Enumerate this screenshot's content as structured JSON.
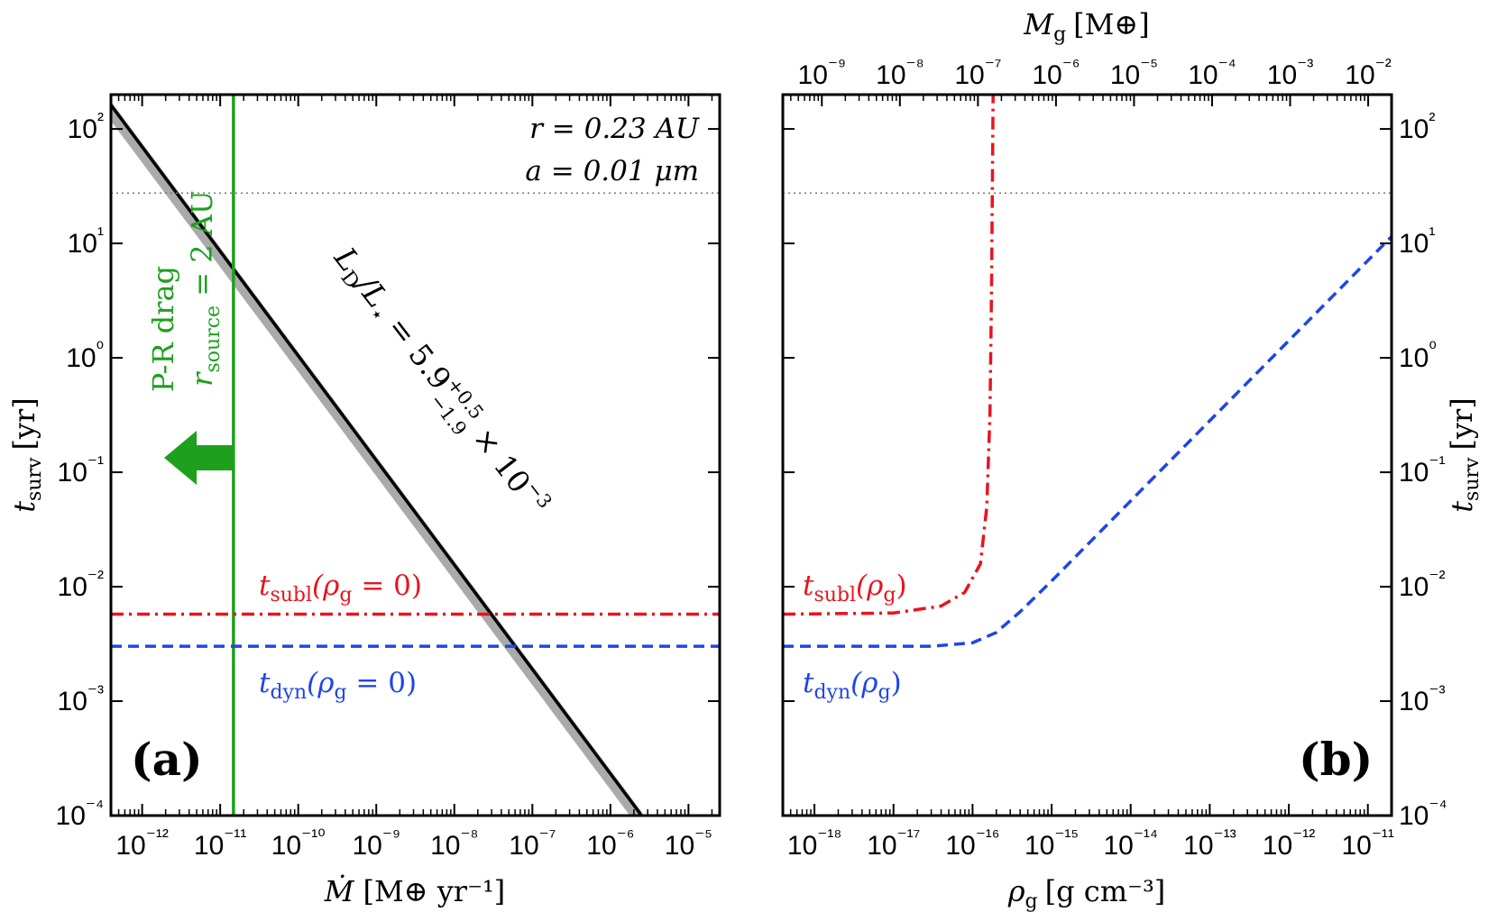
{
  "chart_data": [
    {
      "panel_label": "(a)",
      "type": "line",
      "xscale": "log",
      "yscale": "log",
      "xlim_exp": [
        -12.4,
        -4.6
      ],
      "ylim_exp": [
        -4,
        2.3
      ],
      "xticks_exp": [
        -12,
        -11,
        -10,
        -9,
        -8,
        -7,
        -6,
        -5
      ],
      "yticks_exp": [
        -4,
        -3,
        -2,
        -1,
        0,
        1,
        2
      ],
      "xlabel": {
        "main": "Ṁ",
        "unit": "[M⊕ yr⁻¹]"
      },
      "ylabel": {
        "main": "t",
        "sub": "surv",
        "unit": "[yr]"
      },
      "annotations": {
        "radius": "r = 0.23 AU",
        "grain_size": "a = 0.01 μm",
        "pr_drag": "P-R drag",
        "r_source": "r",
        "r_source_sub": "source",
        "r_source_val": " = 2 AU",
        "ld_label": "L",
        "ld_label_sub": "D",
        "ld_label_rest": "/L",
        "ld_star": "⋆",
        "ld_value": " = 5.9",
        "ld_up": "+0.5",
        "ld_down": "−1.9",
        "ld_times": " × 10",
        "ld_exp": "−3",
        "tsubl": "t",
        "tsubl_sub": "subl",
        "tsubl_arg": "(ρ",
        "tsubl_arg_sub": "g",
        "tsubl_arg_rest": " = 0)",
        "tdyn": "t",
        "tdyn_sub": "dyn",
        "tdyn_arg": "(ρ",
        "tdyn_arg_sub": "g",
        "tdyn_arg_rest": " = 0)"
      },
      "series": [
        {
          "name": "L_D/L_star = 5.9e-3 band (range 4.0e-3 to 6.4e-3)",
          "style": "gray band",
          "color": "#aaaaaa",
          "x_exp": [
            -12.5,
            -5.6
          ],
          "y_exp": [
            2.3,
            -4.0
          ]
        },
        {
          "name": "L_D/L_star = 5.9e-3",
          "style": "solid",
          "color": "#000000",
          "x_exp": [
            -12.5,
            -5.6
          ],
          "y_exp": [
            2.3,
            -4.0
          ]
        },
        {
          "name": "P-R drag r_source = 2 AU",
          "style": "solid vertical",
          "color": "#1ea01e",
          "x_exp": -10.83
        },
        {
          "name": "t_subl(rho_g = 0)",
          "style": "dash-dot",
          "color": "#e8141e",
          "y_exp": -2.24
        },
        {
          "name": "t_dyn(rho_g = 0)",
          "style": "dashed",
          "color": "#1e46e6",
          "y_exp": -2.52
        },
        {
          "name": "reference",
          "style": "dotted",
          "color": "#777777",
          "y_exp": 1.44
        }
      ]
    },
    {
      "panel_label": "(b)",
      "type": "line",
      "xscale": "log",
      "yscale": "log",
      "xlim_exp": [
        -18.4,
        -10.7
      ],
      "ylim_exp": [
        -4,
        2.3
      ],
      "xticks_exp": [
        -18,
        -17,
        -16,
        -15,
        -14,
        -13,
        -12,
        -11
      ],
      "top_xticks_exp": [
        -9,
        -8,
        -7,
        -6,
        -5,
        -4,
        -3,
        -2
      ],
      "top_xlim_exp": [
        -9.5,
        -1.7
      ],
      "yticks_exp": [
        -4,
        -3,
        -2,
        -1,
        0,
        1,
        2
      ],
      "xlabel": {
        "main": "ρ",
        "sub": "g",
        "unit": "[g cm⁻³]"
      },
      "top_xlabel": {
        "main": "M",
        "sub": "g",
        "unit": "[M⊕]"
      },
      "ylabel": {
        "main": "t",
        "sub": "surv",
        "unit": "[yr]"
      },
      "annotations": {
        "tsubl": "t",
        "tsubl_sub": "subl",
        "tsubl_arg": "(ρ",
        "tsubl_arg_sub": "g",
        "tsubl_arg_rest": ")",
        "tdyn": "t",
        "tdyn_sub": "dyn",
        "tdyn_arg": "(ρ",
        "tdyn_arg_sub": "g",
        "tdyn_arg_rest": ")"
      },
      "series": [
        {
          "name": "t_subl(rho_g)",
          "style": "dash-dot",
          "color": "#e8141e",
          "x_exp": [
            -18.4,
            -17.0,
            -16.4,
            -16.1,
            -15.9,
            -15.82,
            -15.78,
            -15.76,
            -15.74
          ],
          "y_exp": [
            -2.24,
            -2.23,
            -2.17,
            -2.05,
            -1.8,
            -1.3,
            -0.5,
            0.6,
            2.3
          ]
        },
        {
          "name": "t_dyn(rho_g)",
          "style": "dashed",
          "color": "#1e46e6",
          "x_exp": [
            -18.4,
            -16.5,
            -16.0,
            -15.7,
            -15.4,
            -15.0,
            -14.0,
            -13.0,
            -12.0,
            -11.0,
            -10.7
          ],
          "y_exp": [
            -2.52,
            -2.52,
            -2.49,
            -2.4,
            -2.22,
            -1.95,
            -1.25,
            -0.55,
            0.15,
            0.85,
            1.06
          ]
        },
        {
          "name": "reference",
          "style": "dotted",
          "color": "#777777",
          "y_exp": 1.44
        }
      ]
    }
  ]
}
